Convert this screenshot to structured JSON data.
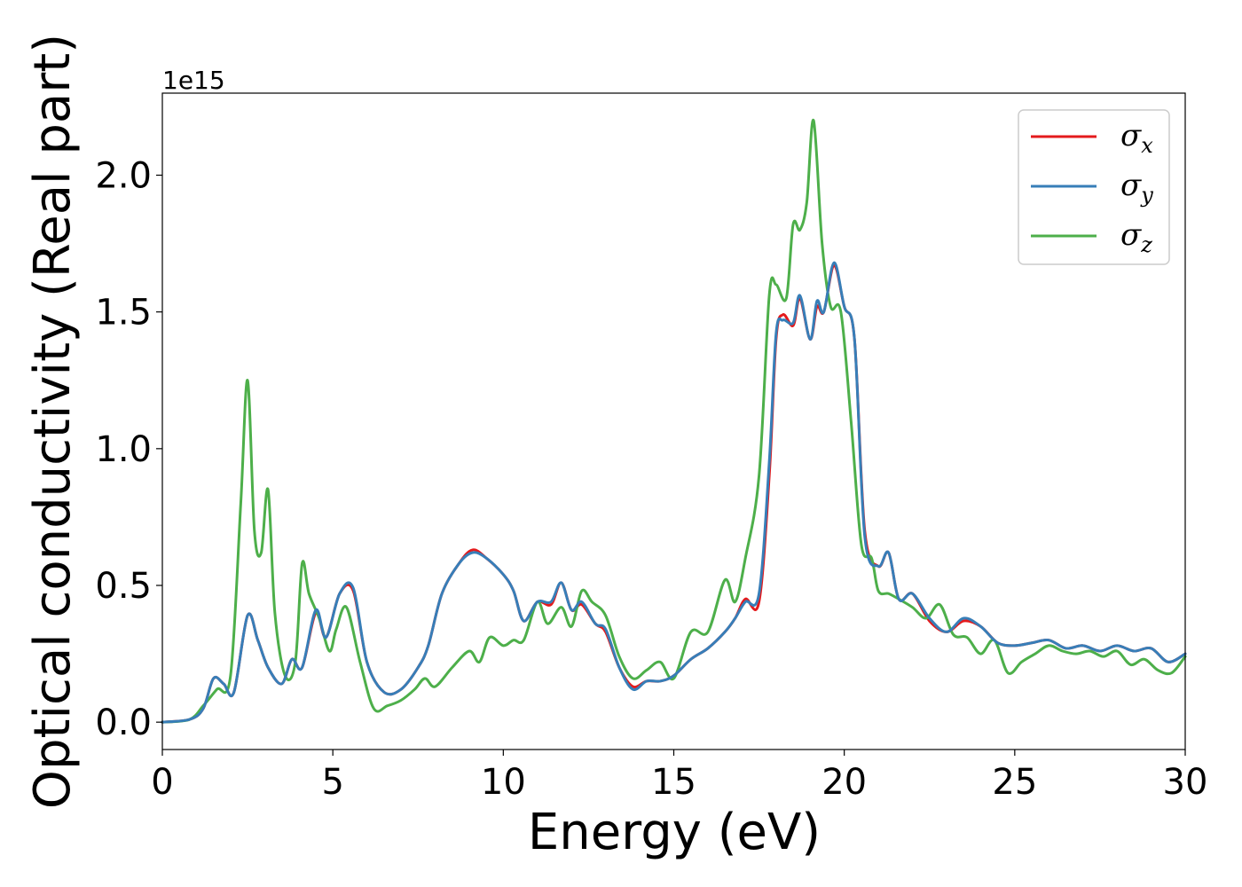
{
  "chart_data": {
    "type": "line",
    "title": "",
    "xlabel": "Energy (eV)",
    "ylabel": "Optical conductivity (Real part)",
    "y_offset_label": "1e15",
    "xlim": [
      0,
      30
    ],
    "ylim": [
      -0.1,
      2.3
    ],
    "x_ticks": [
      0,
      5,
      10,
      15,
      20,
      25,
      30
    ],
    "x_tick_labels": [
      "0",
      "5",
      "10",
      "15",
      "20",
      "25",
      "30"
    ],
    "y_ticks": [
      0.0,
      0.5,
      1.0,
      1.5,
      2.0
    ],
    "y_tick_labels": [
      "0.0",
      "0.5",
      "1.0",
      "1.5",
      "2.0"
    ],
    "grid": false,
    "legend_position": "top-right",
    "series": [
      {
        "name": "σx",
        "legend_symbol": "σ",
        "legend_subscript": "x",
        "color": "#e41a1c",
        "x": [
          0,
          0.8,
          1.2,
          1.5,
          1.8,
          2.1,
          2.5,
          2.8,
          3.1,
          3.5,
          3.8,
          4.1,
          4.5,
          4.8,
          5.2,
          5.6,
          6.0,
          6.5,
          7.0,
          7.5,
          7.8,
          8.2,
          8.7,
          9.1,
          9.5,
          10.0,
          10.3,
          10.6,
          11.0,
          11.4,
          11.7,
          12.0,
          12.3,
          12.7,
          13.0,
          13.4,
          13.8,
          14.2,
          14.6,
          15.0,
          15.5,
          16.0,
          16.5,
          16.8,
          17.1,
          17.5,
          17.8,
          18.0,
          18.2,
          18.5,
          18.7,
          19.0,
          19.2,
          19.4,
          19.7,
          20.0,
          20.3,
          20.6,
          21.0,
          21.3,
          21.6,
          22.0,
          22.5,
          23.0,
          23.5,
          24.0,
          24.5,
          25.0,
          25.5,
          26.0,
          26.5,
          27.0,
          27.5,
          28.0,
          28.5,
          29.0,
          29.5,
          30.0
        ],
        "y": [
          0.0,
          0.01,
          0.05,
          0.16,
          0.14,
          0.11,
          0.39,
          0.3,
          0.2,
          0.14,
          0.23,
          0.2,
          0.4,
          0.31,
          0.47,
          0.48,
          0.22,
          0.11,
          0.12,
          0.2,
          0.28,
          0.47,
          0.58,
          0.63,
          0.6,
          0.54,
          0.48,
          0.37,
          0.44,
          0.43,
          0.51,
          0.41,
          0.43,
          0.36,
          0.33,
          0.2,
          0.13,
          0.15,
          0.15,
          0.17,
          0.23,
          0.27,
          0.33,
          0.38,
          0.45,
          0.44,
          0.9,
          1.4,
          1.49,
          1.45,
          1.55,
          1.4,
          1.52,
          1.5,
          1.67,
          1.52,
          1.4,
          0.7,
          0.57,
          0.62,
          0.45,
          0.47,
          0.37,
          0.33,
          0.37,
          0.35,
          0.29,
          0.28,
          0.29,
          0.3,
          0.27,
          0.28,
          0.26,
          0.28,
          0.26,
          0.27,
          0.22,
          0.25
        ]
      },
      {
        "name": "σy",
        "legend_symbol": "σ",
        "legend_subscript": "y",
        "color": "#377eb8",
        "x": [
          0,
          0.8,
          1.2,
          1.5,
          1.8,
          2.1,
          2.5,
          2.8,
          3.1,
          3.5,
          3.8,
          4.1,
          4.5,
          4.8,
          5.2,
          5.6,
          6.0,
          6.5,
          7.0,
          7.5,
          7.8,
          8.2,
          8.7,
          9.1,
          9.5,
          10.0,
          10.3,
          10.6,
          11.0,
          11.4,
          11.7,
          12.0,
          12.3,
          12.7,
          13.0,
          13.4,
          13.8,
          14.2,
          14.6,
          15.0,
          15.5,
          16.0,
          16.5,
          16.8,
          17.1,
          17.5,
          17.8,
          18.0,
          18.2,
          18.5,
          18.7,
          19.0,
          19.2,
          19.4,
          19.7,
          20.0,
          20.3,
          20.6,
          21.0,
          21.3,
          21.6,
          22.0,
          22.5,
          23.0,
          23.5,
          24.0,
          24.5,
          25.0,
          25.5,
          26.0,
          26.5,
          27.0,
          27.5,
          28.0,
          28.5,
          29.0,
          29.5,
          30.0
        ],
        "y": [
          0.0,
          0.01,
          0.05,
          0.16,
          0.14,
          0.11,
          0.39,
          0.3,
          0.2,
          0.14,
          0.23,
          0.2,
          0.41,
          0.31,
          0.47,
          0.49,
          0.22,
          0.11,
          0.12,
          0.2,
          0.28,
          0.47,
          0.58,
          0.62,
          0.6,
          0.54,
          0.48,
          0.37,
          0.44,
          0.44,
          0.51,
          0.41,
          0.44,
          0.36,
          0.34,
          0.2,
          0.12,
          0.15,
          0.15,
          0.17,
          0.23,
          0.27,
          0.33,
          0.38,
          0.44,
          0.47,
          0.95,
          1.42,
          1.47,
          1.46,
          1.56,
          1.4,
          1.54,
          1.5,
          1.68,
          1.52,
          1.4,
          0.68,
          0.57,
          0.62,
          0.45,
          0.47,
          0.38,
          0.33,
          0.38,
          0.35,
          0.29,
          0.28,
          0.29,
          0.3,
          0.27,
          0.28,
          0.26,
          0.28,
          0.26,
          0.27,
          0.22,
          0.25
        ]
      },
      {
        "name": "σz",
        "legend_symbol": "σ",
        "legend_subscript": "z",
        "color": "#4daf4a",
        "x": [
          0,
          0.8,
          1.2,
          1.6,
          2.0,
          2.3,
          2.5,
          2.7,
          2.9,
          3.1,
          3.3,
          3.6,
          3.9,
          4.1,
          4.3,
          4.6,
          4.9,
          5.1,
          5.4,
          5.8,
          6.2,
          6.6,
          7.0,
          7.4,
          7.7,
          8.0,
          8.5,
          9.0,
          9.3,
          9.6,
          10.0,
          10.3,
          10.6,
          11.0,
          11.3,
          11.7,
          12.0,
          12.3,
          12.6,
          13.0,
          13.4,
          13.8,
          14.2,
          14.6,
          15.0,
          15.5,
          16.0,
          16.5,
          16.8,
          17.1,
          17.5,
          17.8,
          18.0,
          18.3,
          18.5,
          18.7,
          18.9,
          19.1,
          19.35,
          19.6,
          19.9,
          20.2,
          20.5,
          20.8,
          21.0,
          21.3,
          21.6,
          22.0,
          22.4,
          22.8,
          23.2,
          23.6,
          24.0,
          24.4,
          24.8,
          25.2,
          25.6,
          26.0,
          26.4,
          26.8,
          27.2,
          27.6,
          28.0,
          28.4,
          28.8,
          29.2,
          29.6,
          30.0
        ],
        "y": [
          0.0,
          0.01,
          0.06,
          0.12,
          0.17,
          0.8,
          1.25,
          0.7,
          0.62,
          0.85,
          0.4,
          0.17,
          0.22,
          0.58,
          0.47,
          0.38,
          0.26,
          0.34,
          0.42,
          0.22,
          0.05,
          0.06,
          0.08,
          0.12,
          0.16,
          0.13,
          0.2,
          0.26,
          0.22,
          0.31,
          0.28,
          0.3,
          0.3,
          0.44,
          0.36,
          0.42,
          0.35,
          0.48,
          0.44,
          0.39,
          0.24,
          0.16,
          0.19,
          0.22,
          0.16,
          0.33,
          0.33,
          0.52,
          0.44,
          0.6,
          0.9,
          1.56,
          1.6,
          1.55,
          1.82,
          1.8,
          1.9,
          2.2,
          1.75,
          1.52,
          1.5,
          1.1,
          0.65,
          0.6,
          0.48,
          0.47,
          0.45,
          0.42,
          0.38,
          0.43,
          0.32,
          0.31,
          0.25,
          0.3,
          0.18,
          0.22,
          0.25,
          0.28,
          0.26,
          0.25,
          0.26,
          0.24,
          0.26,
          0.21,
          0.23,
          0.19,
          0.18,
          0.24
        ]
      }
    ]
  }
}
